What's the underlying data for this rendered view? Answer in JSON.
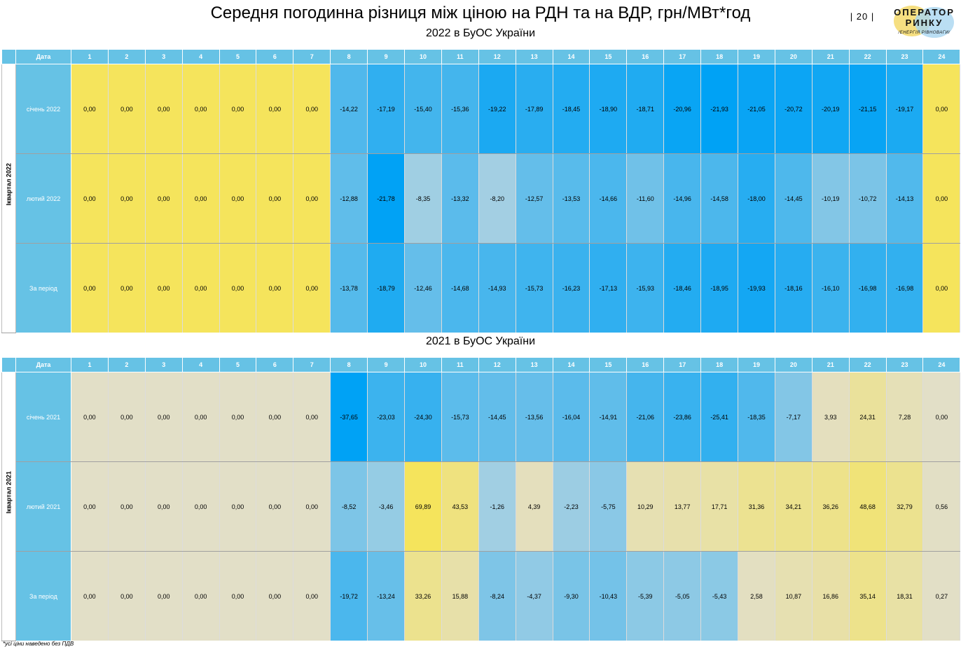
{
  "title": "Середня погодинна різниця між ціною на РДН  та на ВДР, грн/МВт*год",
  "page_number": "|  20  |",
  "logo": {
    "line1": "ОПЕРАТОР",
    "line2": "РИНКУ",
    "tagline": "/ЕНЕРГІЯ РІВНОВАГИ/"
  },
  "footnote": "*усі ціни наведено без ПДВ",
  "colors": {
    "header_blue": "#66c2e5",
    "yellow": "#f5e45c",
    "blue_strong": "#00a2f5",
    "blue_light": "#a9d1e2",
    "beige": "#e2dfc7"
  },
  "chart_data": [
    {
      "type": "heatmap",
      "title": "2022 в БуОС України",
      "quarter_label": "Іквартал 2022",
      "corner_label": "Дата",
      "x": [
        "1",
        "2",
        "3",
        "4",
        "5",
        "6",
        "7",
        "8",
        "9",
        "10",
        "11",
        "12",
        "13",
        "14",
        "15",
        "16",
        "17",
        "18",
        "19",
        "20",
        "21",
        "22",
        "23",
        "24"
      ],
      "rows": [
        {
          "label": "січень 2022",
          "values": [
            "0,00",
            "0,00",
            "0,00",
            "0,00",
            "0,00",
            "0,00",
            "0,00",
            "-14,22",
            "-17,19",
            "-15,40",
            "-15,36",
            "-19,22",
            "-17,89",
            "-18,45",
            "-18,90",
            "-18,71",
            "-20,96",
            "-21,93",
            "-21,05",
            "-20,72",
            "-20,19",
            "-21,15",
            "-19,17",
            "0,00"
          ]
        },
        {
          "label": "лютий 2022",
          "values": [
            "0,00",
            "0,00",
            "0,00",
            "0,00",
            "0,00",
            "0,00",
            "0,00",
            "-12,88",
            "-21,78",
            "-8,35",
            "-13,32",
            "-8,20",
            "-12,57",
            "-13,53",
            "-14,66",
            "-11,60",
            "-14,96",
            "-14,58",
            "-18,00",
            "-14,45",
            "-10,19",
            "-10,72",
            "-14,13",
            "0,00"
          ]
        },
        {
          "label": "За період",
          "values": [
            "0,00",
            "0,00",
            "0,00",
            "0,00",
            "0,00",
            "0,00",
            "0,00",
            "-13,78",
            "-18,79",
            "-12,46",
            "-14,68",
            "-14,93",
            "-15,73",
            "-16,23",
            "-17,13",
            "-15,93",
            "-18,46",
            "-18,95",
            "-19,93",
            "-18,16",
            "-16,10",
            "-16,98",
            "-16,98",
            "0,00"
          ]
        }
      ]
    },
    {
      "type": "heatmap",
      "title": "2021 в БуОС України",
      "quarter_label": "Іквартал 2021",
      "corner_label": "Дата",
      "x": [
        "1",
        "2",
        "3",
        "4",
        "5",
        "6",
        "7",
        "8",
        "9",
        "10",
        "11",
        "12",
        "13",
        "14",
        "15",
        "16",
        "17",
        "18",
        "19",
        "20",
        "21",
        "22",
        "23",
        "24"
      ],
      "rows": [
        {
          "label": "січень 2021",
          "values": [
            "0,00",
            "0,00",
            "0,00",
            "0,00",
            "0,00",
            "0,00",
            "0,00",
            "-37,65",
            "-23,03",
            "-24,30",
            "-15,73",
            "-14,45",
            "-13,56",
            "-16,04",
            "-14,91",
            "-21,06",
            "-23,86",
            "-25,41",
            "-18,35",
            "-7,17",
            "3,93",
            "24,31",
            "7,28",
            "0,00"
          ]
        },
        {
          "label": "лютий 2021",
          "values": [
            "0,00",
            "0,00",
            "0,00",
            "0,00",
            "0,00",
            "0,00",
            "0,00",
            "-8,52",
            "-3,46",
            "69,89",
            "43,53",
            "-1,26",
            "4,39",
            "-2,23",
            "-5,75",
            "10,29",
            "13,77",
            "17,71",
            "31,36",
            "34,21",
            "36,26",
            "48,68",
            "32,79",
            "0,56"
          ]
        },
        {
          "label": "За період",
          "values": [
            "0,00",
            "0,00",
            "0,00",
            "0,00",
            "0,00",
            "0,00",
            "0,00",
            "-19,72",
            "-13,24",
            "33,26",
            "15,88",
            "-8,24",
            "-4,37",
            "-9,30",
            "-10,43",
            "-5,39",
            "-5,05",
            "-5,43",
            "2,58",
            "10,87",
            "16,86",
            "35,14",
            "18,31",
            "0,27"
          ]
        }
      ]
    }
  ]
}
